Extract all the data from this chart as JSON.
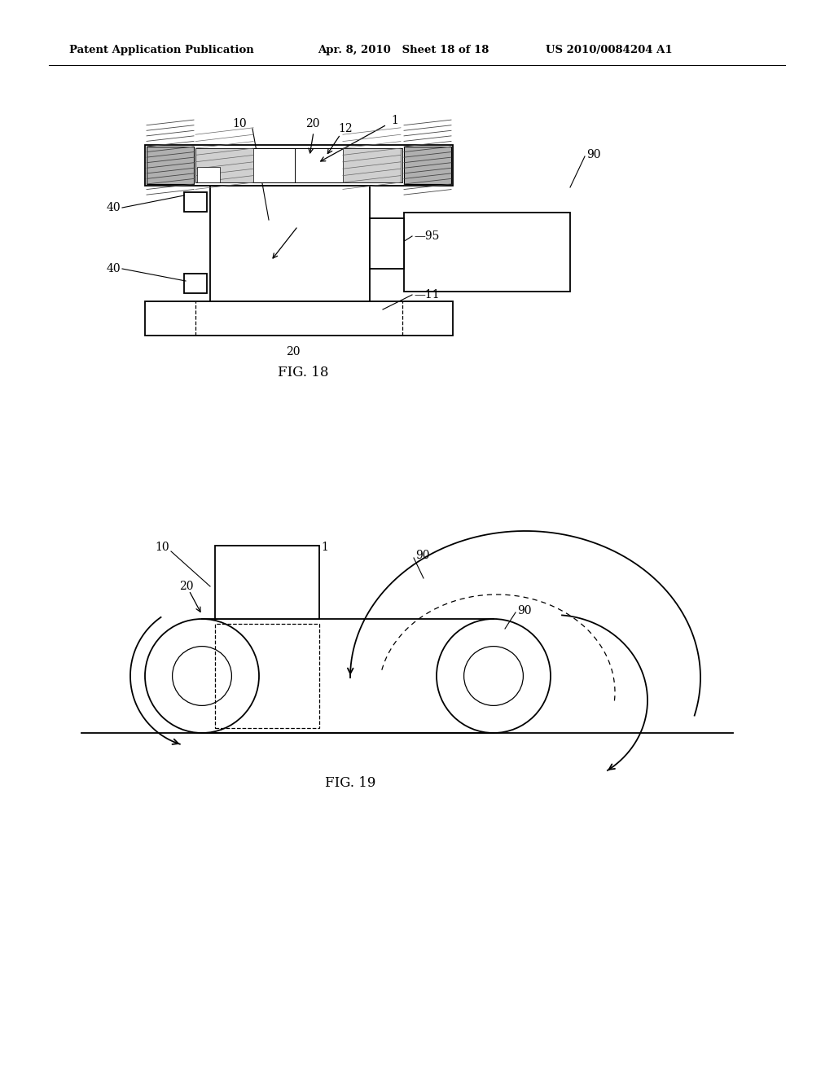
{
  "bg_color": "#ffffff",
  "line_color": "#000000",
  "header_left": "Patent Application Publication",
  "header_mid": "Apr. 8, 2010   Sheet 18 of 18",
  "header_right": "US 2010/0084204 A1",
  "fig18_caption": "FIG. 18",
  "fig19_caption": "FIG. 19"
}
